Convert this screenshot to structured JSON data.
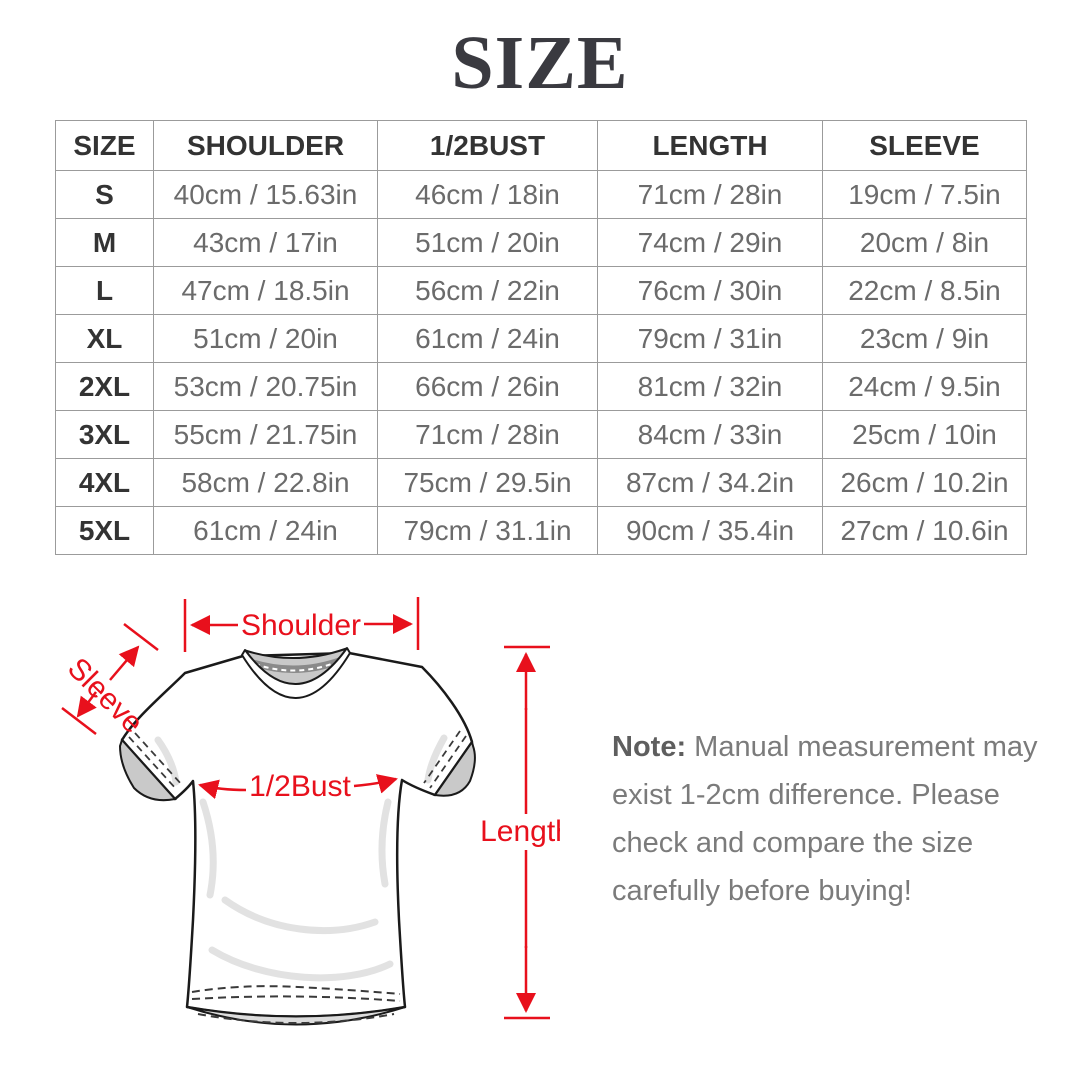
{
  "title": "SIZE",
  "table": {
    "headers": [
      "SIZE",
      "SHOULDER",
      "1/2BUST",
      "LENGTH",
      "SLEEVE"
    ],
    "rows": [
      [
        "S",
        "40cm / 15.63in",
        "46cm / 18in",
        "71cm / 28in",
        "19cm / 7.5in"
      ],
      [
        "M",
        "43cm / 17in",
        "51cm / 20in",
        "74cm / 29in",
        "20cm / 8in"
      ],
      [
        "L",
        "47cm / 18.5in",
        "56cm / 22in",
        "76cm / 30in",
        "22cm / 8.5in"
      ],
      [
        "XL",
        "51cm / 20in",
        "61cm / 24in",
        "79cm / 31in",
        "23cm / 9in"
      ],
      [
        "2XL",
        "53cm / 20.75in",
        "66cm / 26in",
        "81cm / 32in",
        "24cm / 9.5in"
      ],
      [
        "3XL",
        "55cm / 21.75in",
        "71cm / 28in",
        "84cm / 33in",
        "25cm / 10in"
      ],
      [
        "4XL",
        "58cm / 22.8in",
        "75cm / 29.5in",
        "87cm / 34.2in",
        "26cm / 10.2in"
      ],
      [
        "5XL",
        "61cm / 24in",
        "79cm / 31.1in",
        "90cm / 35.4in",
        "27cm / 10.6in"
      ]
    ]
  },
  "diagram": {
    "labels": {
      "shoulder": "Shoulder",
      "sleeve": "Sleeve",
      "half_bust": "1/2Bust",
      "length": "Length"
    },
    "accent_color": "#e8101c"
  },
  "note": {
    "label": "Note:",
    "line1": " Manual measurement may",
    "line2": "exist 1-2cm difference. Please",
    "line3": "check and compare the size",
    "line4": "carefully before buying!"
  }
}
